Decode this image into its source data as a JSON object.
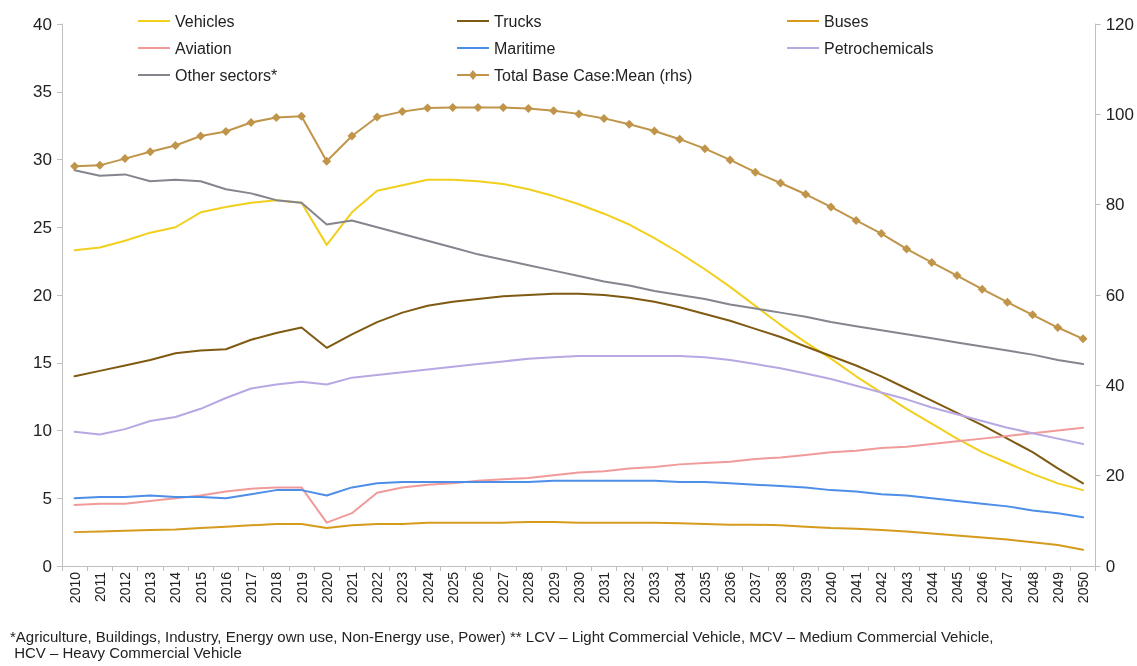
{
  "chart_data": {
    "type": "line",
    "categories": [
      "2010",
      "2011",
      "2012",
      "2013",
      "2014",
      "2015",
      "2016",
      "2017",
      "2018",
      "2019",
      "2020",
      "2021",
      "2022",
      "2023",
      "2024",
      "2025",
      "2026",
      "2027",
      "2028",
      "2029",
      "2030",
      "2031",
      "2032",
      "2033",
      "2034",
      "2035",
      "2036",
      "2037",
      "2038",
      "2039",
      "2040",
      "2041",
      "2042",
      "2043",
      "2044",
      "2045",
      "2046",
      "2047",
      "2048",
      "2049",
      "2050"
    ],
    "series": [
      {
        "name": "Vehicles",
        "color": "#f2cf1d",
        "values": [
          23.3,
          23.5,
          24.0,
          24.6,
          25.0,
          26.1,
          26.5,
          26.8,
          27.0,
          26.8,
          23.7,
          26.1,
          27.7,
          28.1,
          28.5,
          28.5,
          28.4,
          28.2,
          27.8,
          27.3,
          26.7,
          26.0,
          25.2,
          24.2,
          23.1,
          21.9,
          20.6,
          19.2,
          17.8,
          16.5,
          15.3,
          14.0,
          12.8,
          11.6,
          10.5,
          9.4,
          8.4,
          7.6,
          6.8,
          6.1,
          5.6
        ]
      },
      {
        "name": "Trucks",
        "color": "#7f5a12",
        "values": [
          14.0,
          14.4,
          14.8,
          15.2,
          15.7,
          15.9,
          16.0,
          16.7,
          17.2,
          17.6,
          16.1,
          17.1,
          18.0,
          18.7,
          19.2,
          19.5,
          19.7,
          19.9,
          20.0,
          20.1,
          20.1,
          20.0,
          19.8,
          19.5,
          19.1,
          18.6,
          18.1,
          17.5,
          16.9,
          16.2,
          15.5,
          14.8,
          14.0,
          13.1,
          12.2,
          11.3,
          10.4,
          9.4,
          8.4,
          7.2,
          6.1
        ]
      },
      {
        "name": "Buses",
        "color": "#d49b1c",
        "values": [
          2.5,
          2.55,
          2.6,
          2.65,
          2.7,
          2.8,
          2.9,
          3.0,
          3.1,
          3.1,
          2.8,
          3.0,
          3.1,
          3.1,
          3.2,
          3.2,
          3.2,
          3.2,
          3.25,
          3.25,
          3.2,
          3.2,
          3.2,
          3.2,
          3.15,
          3.1,
          3.05,
          3.05,
          3.0,
          2.9,
          2.8,
          2.75,
          2.65,
          2.55,
          2.4,
          2.25,
          2.1,
          1.95,
          1.75,
          1.55,
          1.2
        ]
      },
      {
        "name": "Aviation",
        "color": "#f19a9a",
        "values": [
          4.5,
          4.6,
          4.6,
          4.8,
          5.0,
          5.2,
          5.5,
          5.7,
          5.8,
          5.8,
          3.2,
          3.9,
          5.4,
          5.8,
          6.0,
          6.1,
          6.3,
          6.4,
          6.5,
          6.7,
          6.9,
          7.0,
          7.2,
          7.3,
          7.5,
          7.6,
          7.7,
          7.9,
          8.0,
          8.2,
          8.4,
          8.5,
          8.7,
          8.8,
          9.0,
          9.2,
          9.4,
          9.6,
          9.8,
          10.0,
          10.2
        ]
      },
      {
        "name": "Maritime",
        "color": "#4d8ee8",
        "values": [
          5.0,
          5.1,
          5.1,
          5.2,
          5.1,
          5.1,
          5.0,
          5.3,
          5.6,
          5.6,
          5.2,
          5.8,
          6.1,
          6.2,
          6.2,
          6.2,
          6.2,
          6.2,
          6.2,
          6.3,
          6.3,
          6.3,
          6.3,
          6.3,
          6.2,
          6.2,
          6.1,
          6.0,
          5.9,
          5.8,
          5.6,
          5.5,
          5.3,
          5.2,
          5.0,
          4.8,
          4.6,
          4.4,
          4.1,
          3.9,
          3.6
        ]
      },
      {
        "name": "Petrochemicals",
        "color": "#b7a8e3",
        "values": [
          9.9,
          9.7,
          10.1,
          10.7,
          11.0,
          11.6,
          12.4,
          13.1,
          13.4,
          13.6,
          13.4,
          13.9,
          14.1,
          14.3,
          14.5,
          14.7,
          14.9,
          15.1,
          15.3,
          15.4,
          15.5,
          15.5,
          15.5,
          15.5,
          15.5,
          15.4,
          15.2,
          14.9,
          14.6,
          14.2,
          13.8,
          13.3,
          12.8,
          12.3,
          11.7,
          11.2,
          10.7,
          10.2,
          9.8,
          9.4,
          9.0
        ]
      },
      {
        "name": "Other sectors*",
        "color": "#85858f",
        "values": [
          29.2,
          28.8,
          28.9,
          28.4,
          28.5,
          28.4,
          27.8,
          27.5,
          27.0,
          26.8,
          25.2,
          25.5,
          25.0,
          24.5,
          24.0,
          23.5,
          23.0,
          22.6,
          22.2,
          21.8,
          21.4,
          21.0,
          20.7,
          20.3,
          20.0,
          19.7,
          19.3,
          19.0,
          18.7,
          18.4,
          18.0,
          17.7,
          17.4,
          17.1,
          16.8,
          16.5,
          16.2,
          15.9,
          15.6,
          15.2,
          14.9
        ]
      },
      {
        "name": "Total Base Case:Mean (rhs)",
        "color": "#c0954a",
        "axis": "y2",
        "marker": "diamond",
        "values": [
          88.5,
          88.7,
          90.2,
          91.7,
          93.1,
          95.2,
          96.2,
          98.2,
          99.3,
          99.6,
          89.6,
          95.2,
          99.4,
          100.6,
          101.4,
          101.5,
          101.5,
          101.5,
          101.3,
          100.8,
          100.1,
          99.1,
          97.8,
          96.3,
          94.5,
          92.4,
          89.9,
          87.2,
          84.8,
          82.3,
          79.5,
          76.5,
          73.6,
          70.2,
          67.2,
          64.3,
          61.3,
          58.4,
          55.6,
          52.8,
          50.3
        ]
      }
    ],
    "ylim": [
      0,
      40
    ],
    "yticks": [
      0,
      5,
      10,
      15,
      20,
      25,
      30,
      35,
      40
    ],
    "y2lim": [
      0,
      120
    ],
    "y2ticks": [
      0,
      20,
      40,
      60,
      80,
      100,
      120
    ],
    "grid": false,
    "legend": "top",
    "marker": "none",
    "annotations": [
      "*Agriculture, Buildings, Industry, Energy own use, Non-Energy use, Power) ** LCV – Light Commercial Vehicle, MCV – Medium Commercial Vehicle, HCV – Heavy Commercial Vehicle"
    ]
  }
}
